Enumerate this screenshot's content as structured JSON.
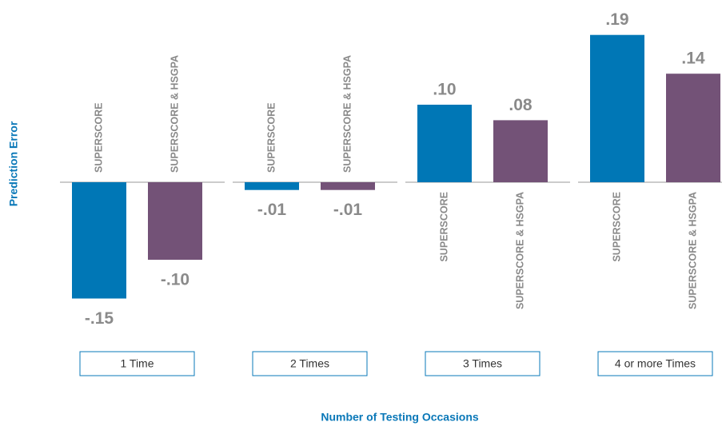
{
  "chart_data": {
    "type": "bar",
    "x_label": "Number of Testing Occasions",
    "y_label": "Prediction Error",
    "categories": [
      "1 Time",
      "2 Times",
      "3 Times",
      "4 or more Times"
    ],
    "series": [
      {
        "name": "SUPERSCORE",
        "color": "#0077b6",
        "values": [
          -0.15,
          -0.01,
          0.1,
          0.19
        ],
        "value_labels": [
          "-.15",
          "-.01",
          ".10",
          ".19"
        ]
      },
      {
        "name": "SUPERSCORE & HSGPA",
        "color": "#735277",
        "values": [
          -0.1,
          -0.01,
          0.08,
          0.14
        ],
        "value_labels": [
          "-.10",
          "-.01",
          ".08",
          ".14"
        ]
      }
    ],
    "ylim": [
      -0.2,
      0.2
    ]
  }
}
